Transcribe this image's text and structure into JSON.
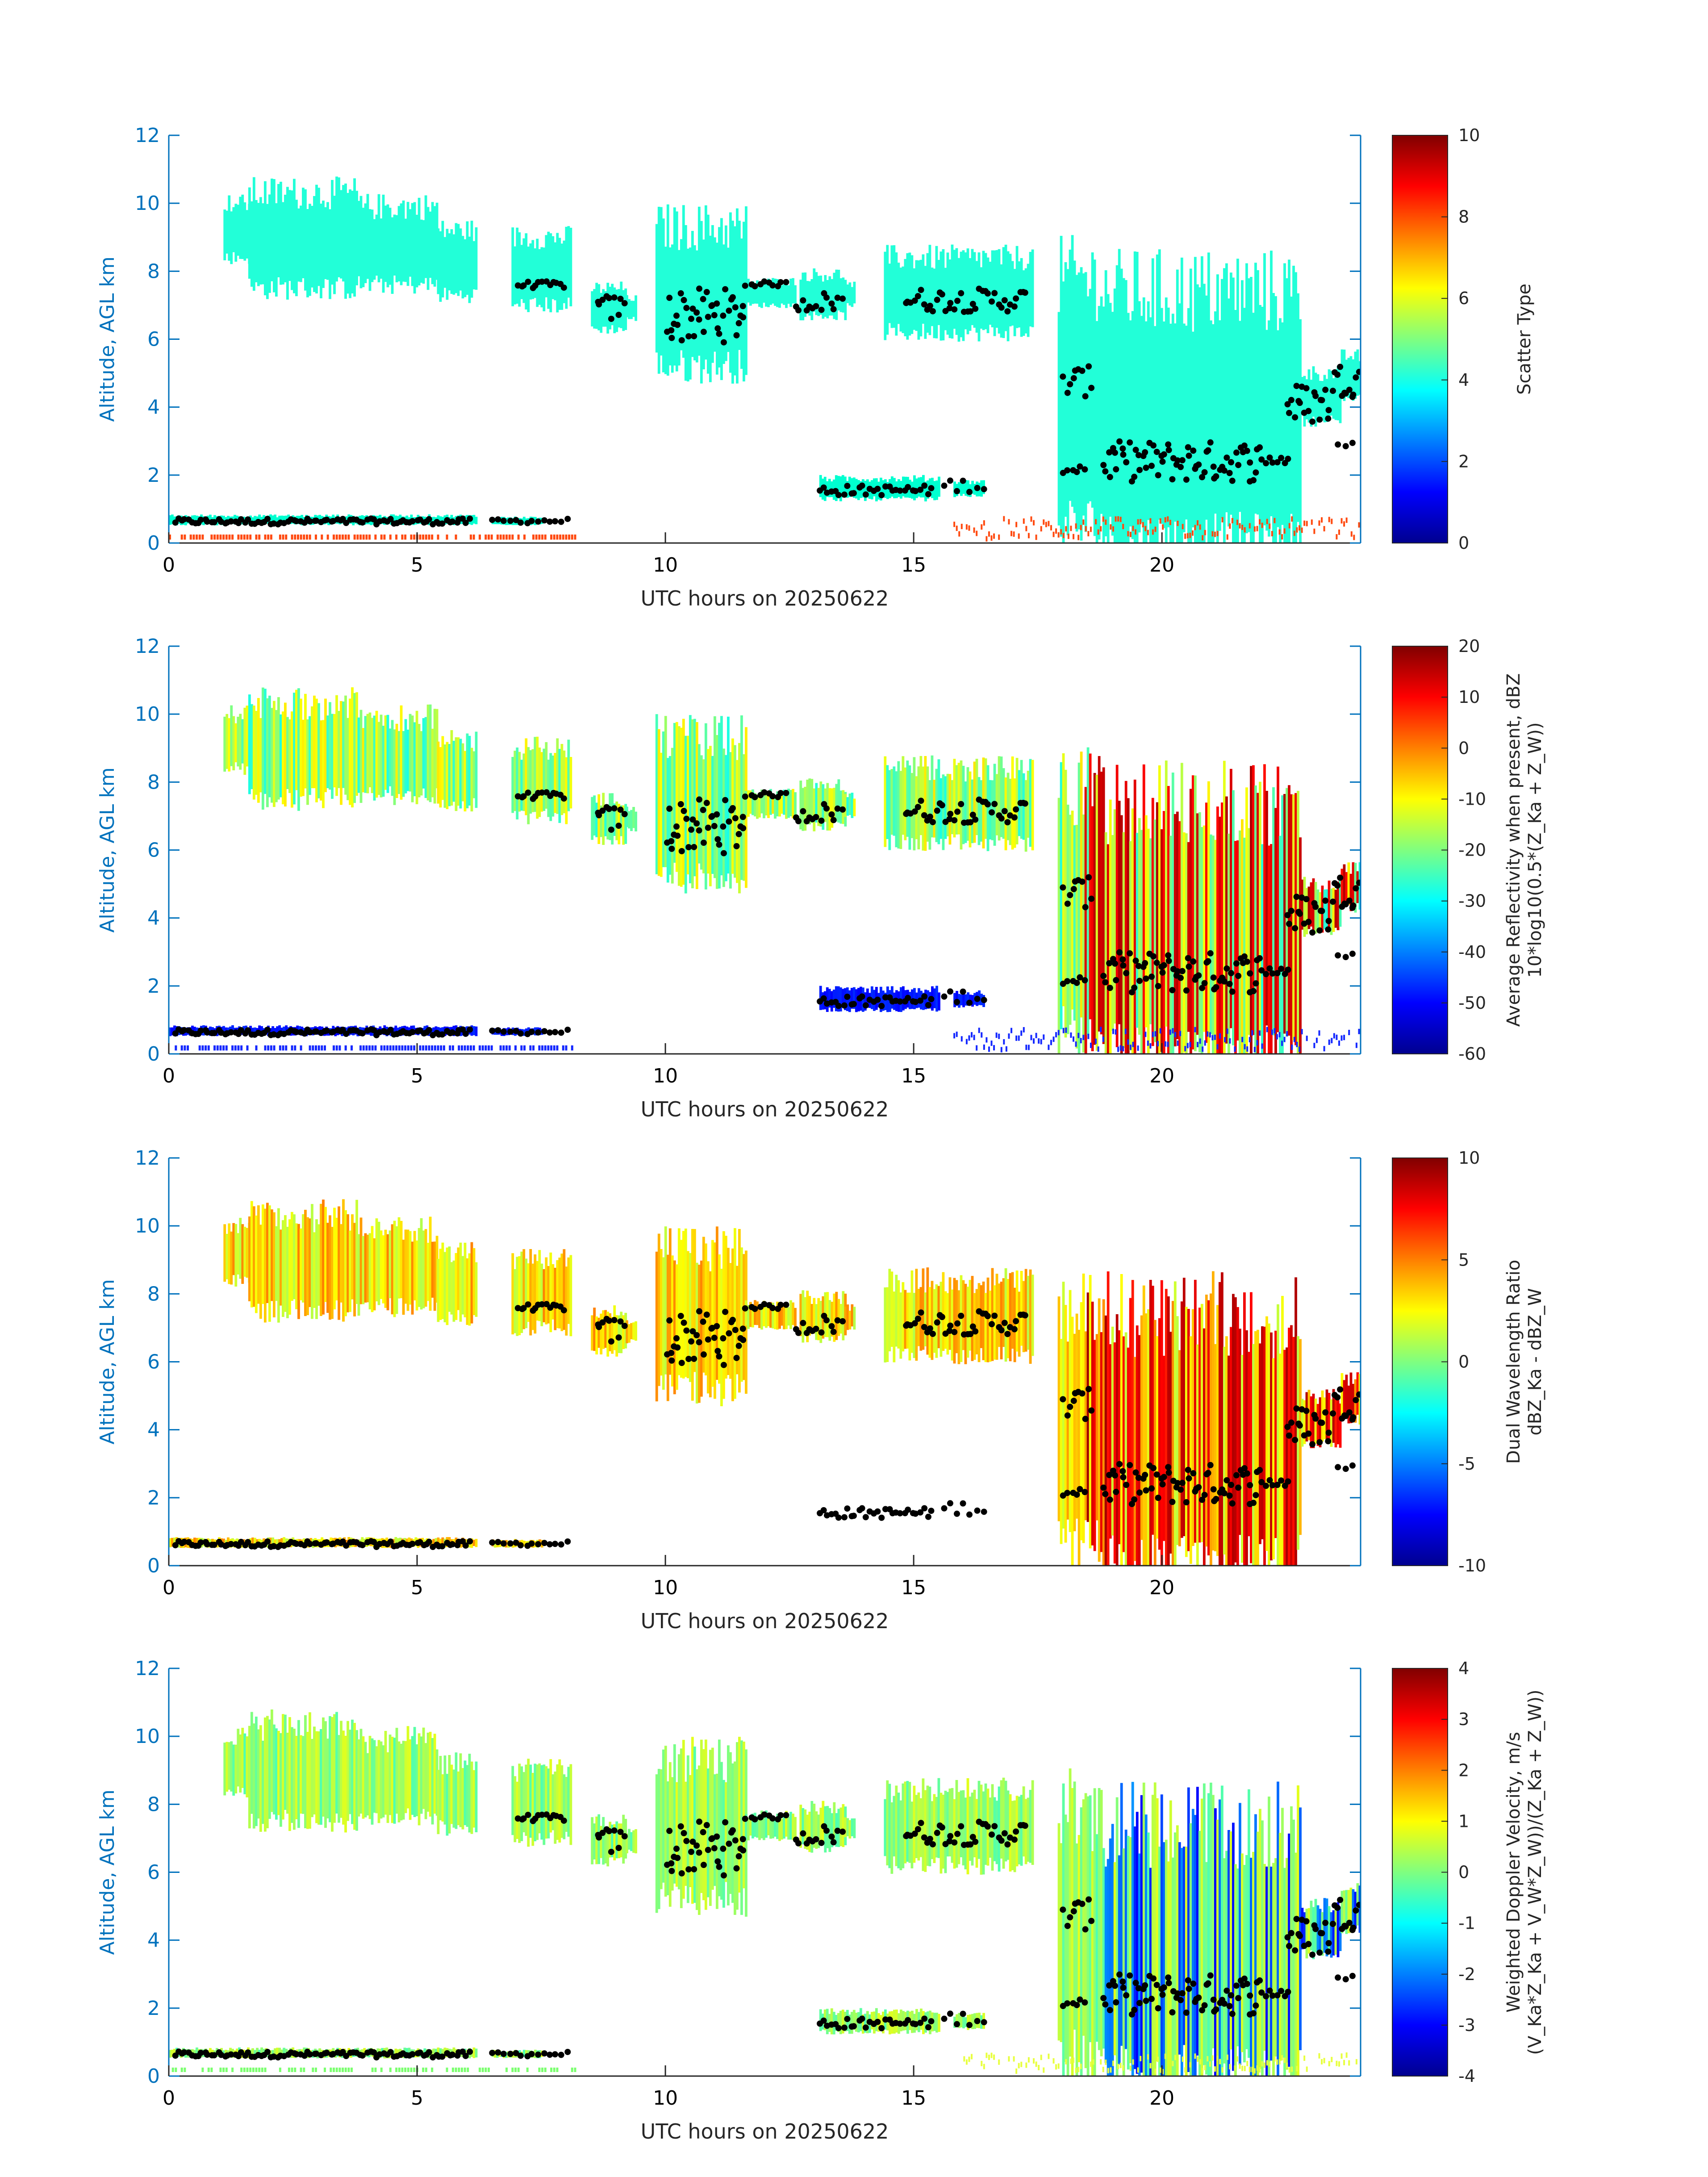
{
  "figure": {
    "x_axis_label": "UTC hours on 20250622",
    "y_axis_label": "Altitude, AGL km"
  },
  "chart_data": [
    {
      "type": "heatmap",
      "panel": 1,
      "xlabel": "UTC hours on 20250622",
      "ylabel": "Altitude, AGL km",
      "xlim": [
        0,
        24
      ],
      "ylim": [
        0,
        12
      ],
      "xticks": [
        "0",
        "5",
        "10",
        "15",
        "20"
      ],
      "yticks": [
        "0",
        "2",
        "4",
        "6",
        "8",
        "10",
        "12"
      ],
      "colorbar": {
        "label": "Scatter Type",
        "label_line2": "",
        "range": [
          0,
          10
        ],
        "ticks": [
          "0",
          "2",
          "4",
          "6",
          "8",
          "10"
        ]
      },
      "series": [
        {
          "name": "cloud-layers",
          "value": 4
        },
        {
          "name": "near-surface-echo",
          "value": 8.7
        },
        {
          "name": "cloud-base-markers",
          "color": "#000000"
        }
      ]
    },
    {
      "type": "heatmap",
      "panel": 2,
      "xlabel": "UTC hours on 20250622",
      "ylabel": "Altitude, AGL km",
      "xlim": [
        0,
        24
      ],
      "ylim": [
        0,
        12
      ],
      "xticks": [
        "0",
        "5",
        "10",
        "15",
        "20"
      ],
      "yticks": [
        "0",
        "2",
        "4",
        "6",
        "8",
        "10",
        "12"
      ],
      "colorbar": {
        "label": "Average Reflectivity when present, dBZ",
        "label_line2": "10*log10(0.5*(Z_Ka + Z_W))",
        "range": [
          -60,
          20
        ],
        "ticks": [
          "-60",
          "-50",
          "-40",
          "-30",
          "-20",
          "-10",
          "0",
          "10",
          "20"
        ]
      },
      "series": [
        {
          "name": "reflectivity",
          "unit": "dBZ"
        },
        {
          "name": "cloud-base-markers",
          "color": "#000000"
        }
      ]
    },
    {
      "type": "heatmap",
      "panel": 3,
      "xlabel": "UTC hours on 20250622",
      "ylabel": "Altitude, AGL km",
      "xlim": [
        0,
        24
      ],
      "ylim": [
        0,
        12
      ],
      "xticks": [
        "0",
        "5",
        "10",
        "15",
        "20"
      ],
      "yticks": [
        "0",
        "2",
        "4",
        "6",
        "8",
        "10",
        "12"
      ],
      "colorbar": {
        "label": "Dual Wavelength Ratio",
        "label_line2": "dBZ_Ka - dBZ_W",
        "range": [
          -10,
          10
        ],
        "ticks": [
          "-10",
          "-5",
          "0",
          "5",
          "10"
        ]
      },
      "series": [
        {
          "name": "dual-wavelength-ratio",
          "unit": "dB"
        },
        {
          "name": "cloud-base-markers",
          "color": "#000000"
        }
      ]
    },
    {
      "type": "heatmap",
      "panel": 4,
      "xlabel": "UTC hours on 20250622",
      "ylabel": "Altitude, AGL km",
      "xlim": [
        0,
        24
      ],
      "ylim": [
        0,
        12
      ],
      "xticks": [
        "0",
        "5",
        "10",
        "15",
        "20"
      ],
      "yticks": [
        "0",
        "2",
        "4",
        "6",
        "8",
        "10",
        "12"
      ],
      "colorbar": {
        "label": "Weighted Doppler Velocity, m/s",
        "label_line2": "(V_Ka*Z_Ka + V_W*Z_W))/(Z_Ka + Z_W))",
        "range": [
          -4,
          4
        ],
        "ticks": [
          "-4",
          "-3",
          "-2",
          "-1",
          "0",
          "1",
          "2",
          "3",
          "4"
        ]
      },
      "series": [
        {
          "name": "doppler-velocity",
          "unit": "m/s"
        },
        {
          "name": "cloud-base-markers",
          "color": "#000000"
        }
      ]
    }
  ]
}
